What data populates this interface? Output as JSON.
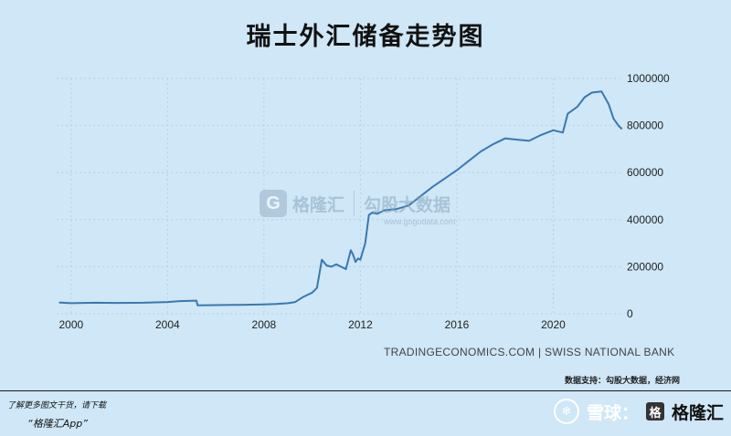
{
  "chart_data": {
    "type": "line",
    "title": "瑞士外汇储备走势图",
    "x_ticks": [
      "2000",
      "2004",
      "2008",
      "2012",
      "2016",
      "2020"
    ],
    "y_ticks": [
      "0",
      "200000",
      "400000",
      "600000",
      "800000",
      "1000000"
    ],
    "ylim": [
      0,
      1000000
    ],
    "xlim": [
      1999.4,
      2022.9
    ],
    "grid": true,
    "y_axis_side": "right",
    "line_color": "#3a78b0",
    "series": [
      {
        "x": [
          1999.5,
          2000.0,
          2001.0,
          2002.0,
          2003.0,
          2004.0,
          2004.5,
          2005.2,
          2005.25,
          2006.0,
          2007.0,
          2008.0,
          2008.5,
          2009.0,
          2009.3,
          2009.6,
          2010.0,
          2010.2,
          2010.4,
          2010.6,
          2010.8,
          2011.0,
          2011.4,
          2011.6,
          2011.7,
          2011.8,
          2011.9,
          2012.0,
          2012.2,
          2012.35,
          2012.5,
          2012.7,
          2013.0,
          2013.5,
          2014.0,
          2014.5,
          2015.0,
          2015.5,
          2016.0,
          2016.5,
          2017.0,
          2017.5,
          2018.0,
          2018.5,
          2019.0,
          2019.5,
          2020.0,
          2020.4,
          2020.6,
          2021.0,
          2021.3,
          2021.6,
          2022.0,
          2022.3,
          2022.5,
          2022.7,
          2022.85
        ],
        "y": [
          48000,
          45000,
          47000,
          46000,
          47000,
          50000,
          54000,
          56000,
          36000,
          37000,
          38000,
          40000,
          42000,
          45000,
          50000,
          70000,
          90000,
          110000,
          230000,
          205000,
          200000,
          210000,
          190000,
          270000,
          250000,
          220000,
          235000,
          230000,
          300000,
          420000,
          430000,
          425000,
          440000,
          445000,
          460000,
          500000,
          540000,
          575000,
          610000,
          650000,
          690000,
          720000,
          745000,
          740000,
          735000,
          760000,
          780000,
          770000,
          850000,
          880000,
          920000,
          940000,
          945000,
          890000,
          830000,
          800000,
          785000
        ]
      }
    ]
  },
  "source_text": "TRADINGECONOMICS.COM  |  SWISS NATIONAL BANK",
  "support_text": "数据支持：勾股大数据，经济网",
  "footer": {
    "line1": "了解更多图文干货，请下载",
    "line2": "“格隆汇App”"
  },
  "watermark": {
    "logo_glyph": "G",
    "name1": "格隆汇",
    "name2": "勾股大数据",
    "url": "www.gogudata.com"
  },
  "brand": {
    "snow_glyph": "❄",
    "snow_text": "雪球：",
    "glh_glyph": "格",
    "glh_name": "格隆汇"
  }
}
